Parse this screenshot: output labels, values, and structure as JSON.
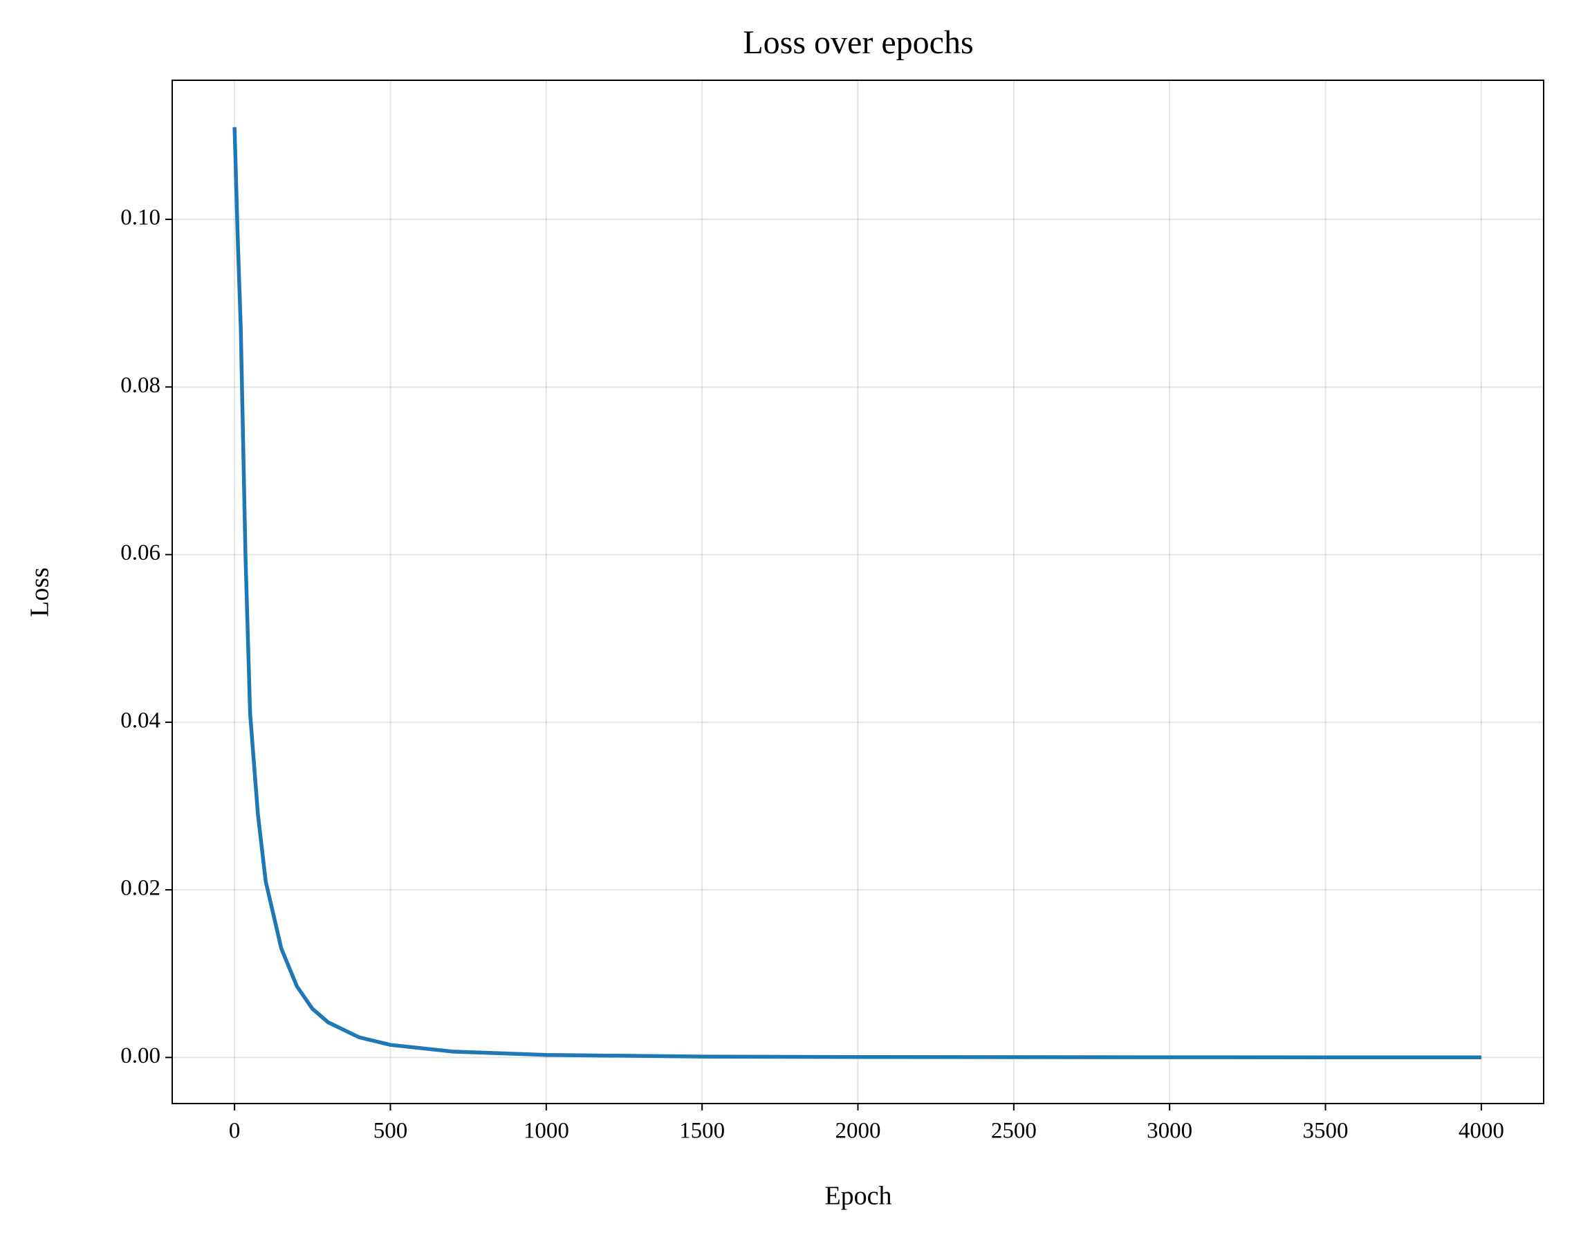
{
  "chart_data": {
    "type": "line",
    "title": "Loss over epochs",
    "x_label": "Epoch",
    "y_label": "Loss",
    "x": [
      0,
      10,
      20,
      35,
      50,
      75,
      100,
      150,
      200,
      250,
      300,
      400,
      500,
      700,
      1000,
      1500,
      2000,
      3000,
      4000
    ],
    "series": [
      {
        "name": "Loss",
        "color": "#1f77b4",
        "values": [
          0.111,
          0.098,
          0.087,
          0.06,
          0.041,
          0.029,
          0.021,
          0.013,
          0.0085,
          0.0058,
          0.0042,
          0.0024,
          0.0015,
          0.0007,
          0.0003,
          0.0001,
          5e-05,
          2e-05,
          1e-05
        ]
      }
    ],
    "xlim": [
      -200,
      4200
    ],
    "ylim": [
      -0.0055,
      0.1166
    ],
    "xticks": [
      0,
      500,
      1000,
      1500,
      2000,
      2500,
      3000,
      3500,
      4000
    ],
    "yticks": [
      {
        "value": 0,
        "label": "0.00"
      },
      {
        "value": 0.02,
        "label": "0.02"
      },
      {
        "value": 0.04,
        "label": "0.04"
      },
      {
        "value": 0.06,
        "label": "0.06"
      },
      {
        "value": 0.08,
        "label": "0.08"
      },
      {
        "value": 0.1,
        "label": "0.10"
      }
    ],
    "grid": true
  }
}
